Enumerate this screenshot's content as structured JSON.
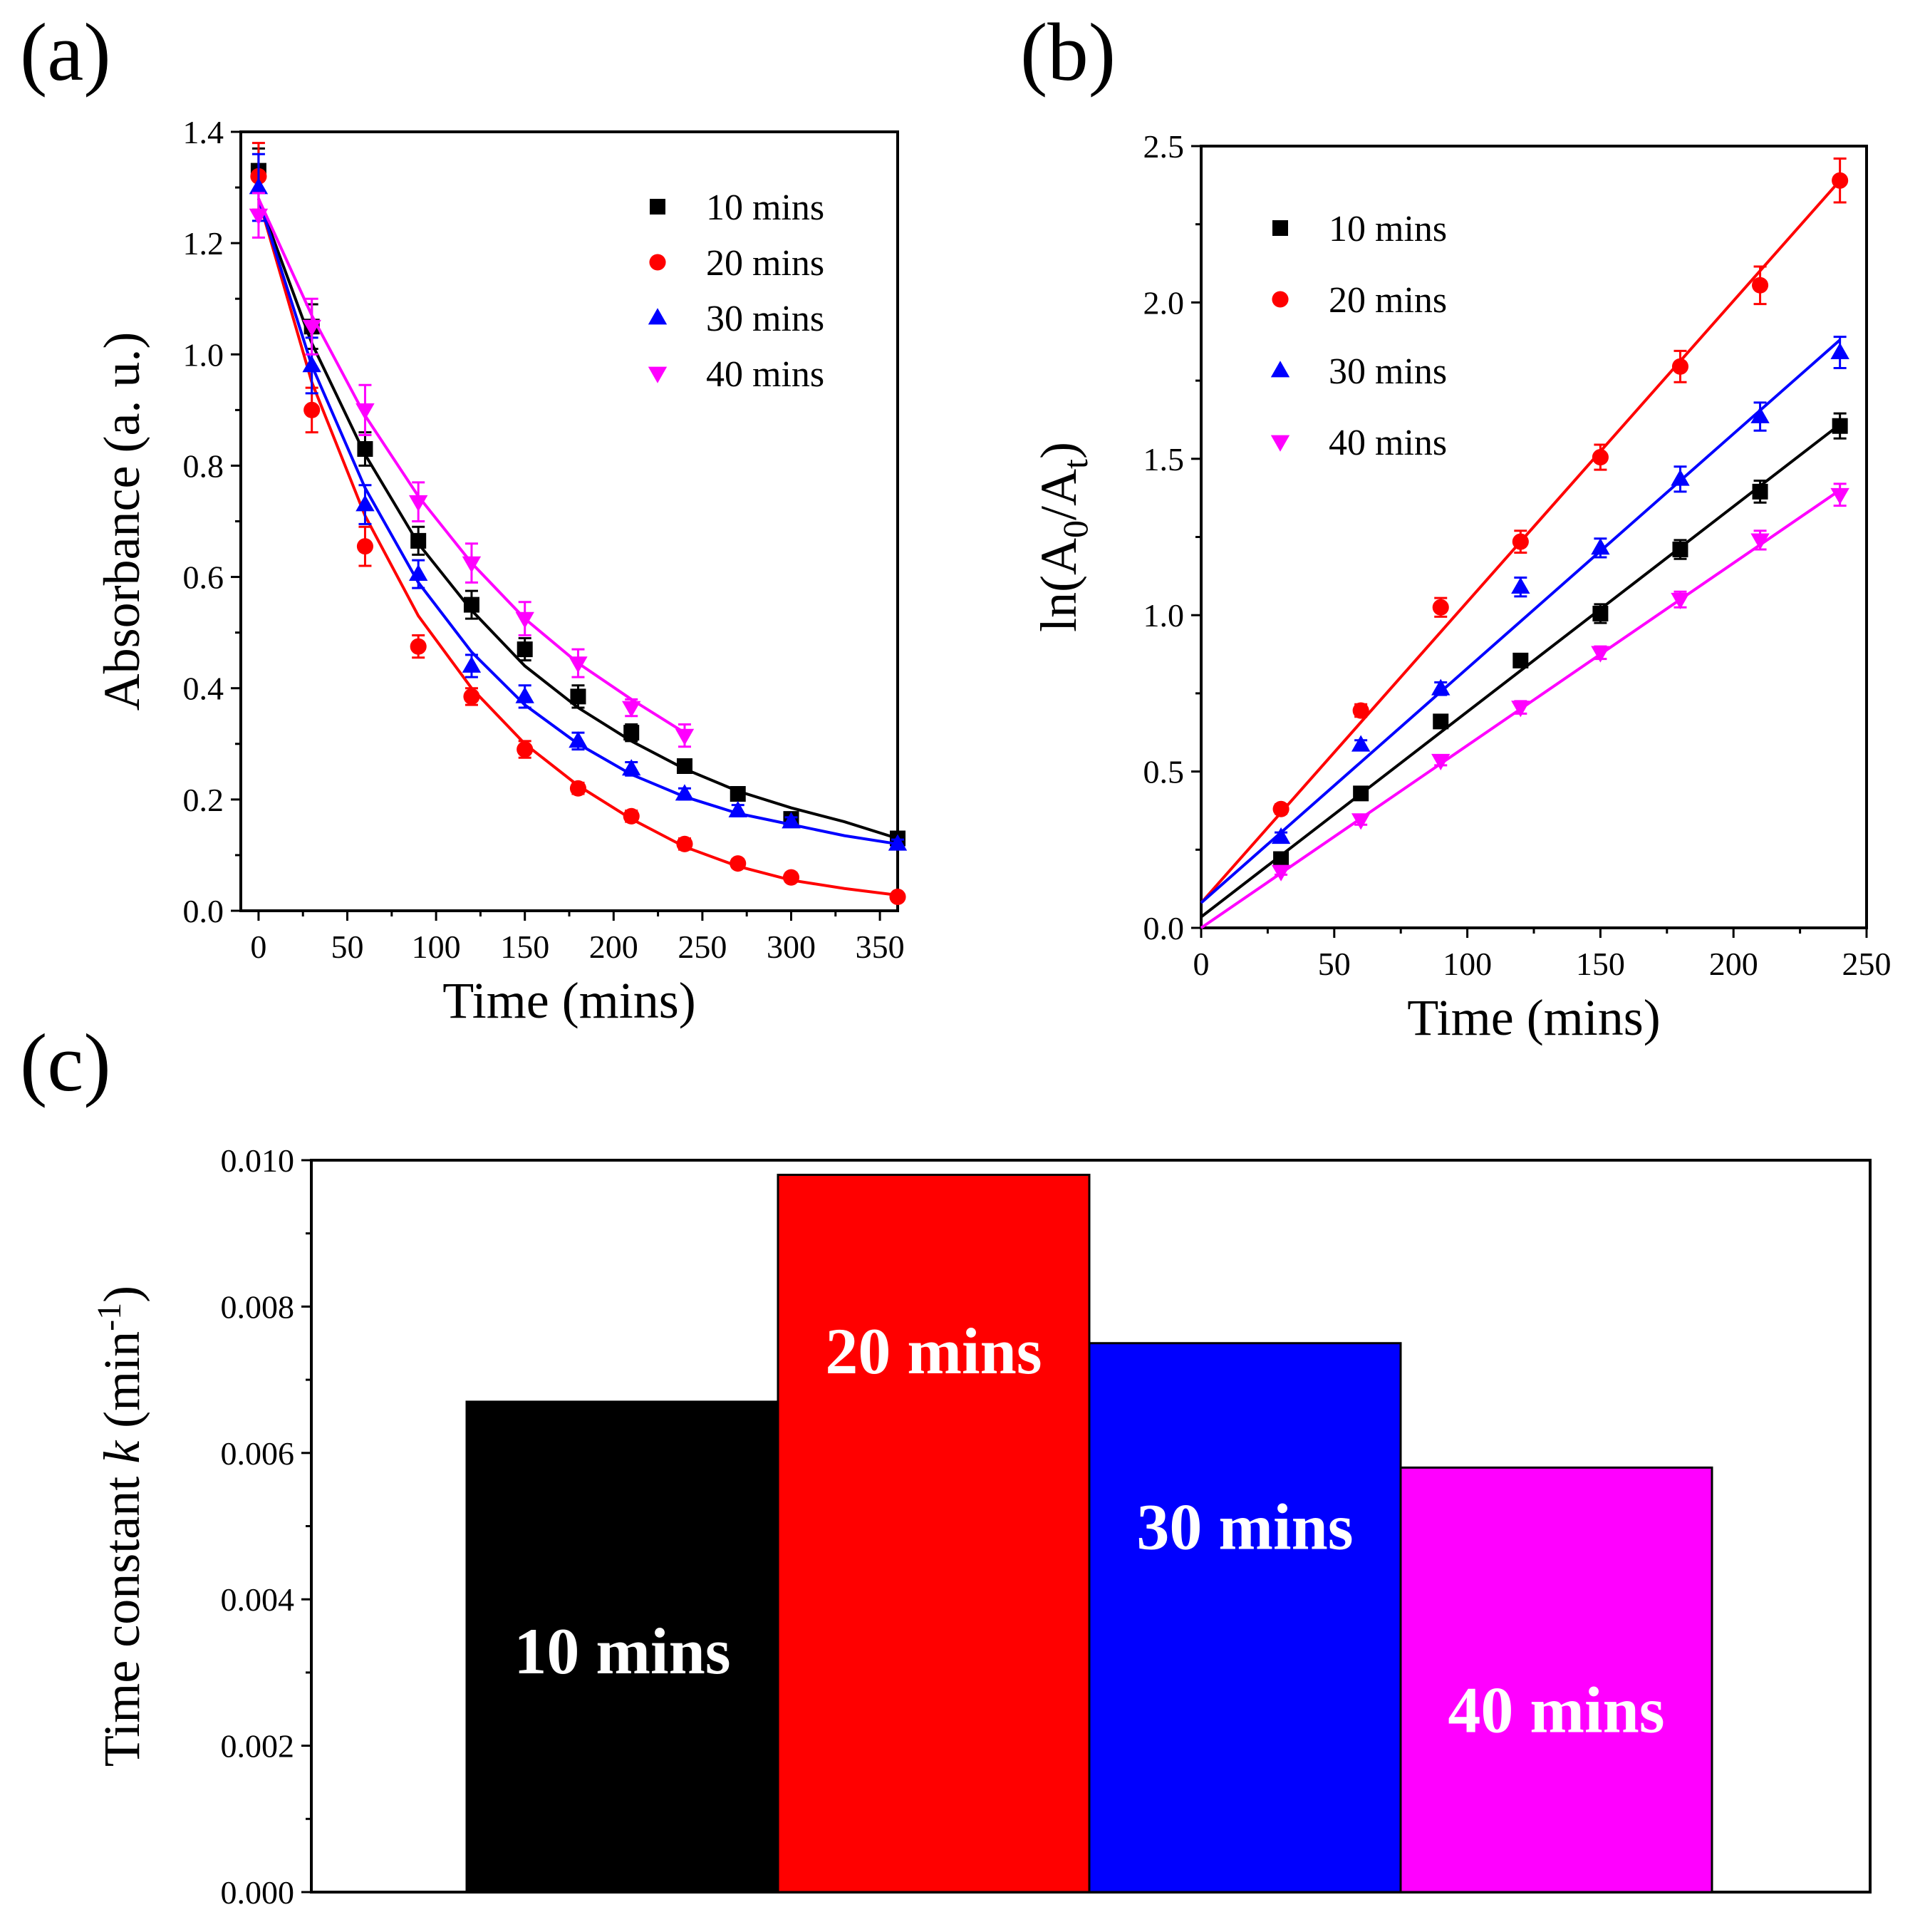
{
  "panels": {
    "a": "(a)",
    "b": "(b)",
    "c": "(c)"
  },
  "colors": {
    "10 mins": "#000000",
    "20 mins": "#ff0000",
    "30 mins": "#0000ff",
    "40 mins": "#ff00ff"
  },
  "chart_data": [
    {
      "id": "a",
      "type": "scatter",
      "xlabel": "Time (mins)",
      "ylabel": "Absorbance (a. u.)",
      "xlim": [
        -10,
        360
      ],
      "ylim": [
        0.0,
        1.4
      ],
      "xticks": [
        0,
        50,
        100,
        150,
        200,
        250,
        300,
        350
      ],
      "yticks": [
        0.0,
        0.2,
        0.4,
        0.6,
        0.8,
        1.0,
        1.2,
        1.4
      ],
      "xtick_labels": [
        "0",
        "50",
        "100",
        "150",
        "200",
        "250",
        "300",
        "350"
      ],
      "ytick_labels": [
        "0.0",
        "0.2",
        "0.4",
        "0.6",
        "0.8",
        "1.0",
        "1.2",
        "1.4"
      ],
      "legend_position": "top-right",
      "fit": "exponential decay",
      "series": [
        {
          "name": "10 mins",
          "marker": "square",
          "x": [
            0,
            30,
            60,
            90,
            120,
            150,
            180,
            210,
            240,
            270,
            300,
            360
          ],
          "y": [
            1.33,
            1.05,
            0.83,
            0.665,
            0.55,
            0.47,
            0.385,
            0.32,
            0.26,
            0.21,
            0.165,
            0.13
          ],
          "err": [
            0.04,
            0.04,
            0.03,
            0.025,
            0.025,
            0.02,
            0.02,
            0.015,
            0.01,
            0.01,
            0.01,
            0.01
          ],
          "fit_x": [
            0,
            30,
            60,
            90,
            120,
            150,
            180,
            210,
            240,
            270,
            300,
            330,
            360
          ],
          "fit_y": [
            1.28,
            1.02,
            0.82,
            0.66,
            0.54,
            0.44,
            0.365,
            0.305,
            0.255,
            0.215,
            0.185,
            0.16,
            0.13
          ]
        },
        {
          "name": "20 mins",
          "marker": "circle",
          "x": [
            0,
            30,
            60,
            90,
            120,
            150,
            180,
            210,
            240,
            270,
            300,
            360
          ],
          "y": [
            1.32,
            0.9,
            0.655,
            0.475,
            0.385,
            0.29,
            0.22,
            0.17,
            0.12,
            0.085,
            0.06,
            0.025
          ],
          "err": [
            0.06,
            0.04,
            0.035,
            0.02,
            0.015,
            0.015,
            0.01,
            0.01,
            0.01,
            0.008,
            0.008,
            0.006
          ],
          "fit_x": [
            0,
            30,
            60,
            90,
            120,
            150,
            180,
            210,
            240,
            270,
            300,
            330,
            360
          ],
          "fit_y": [
            1.28,
            0.95,
            0.71,
            0.53,
            0.4,
            0.3,
            0.225,
            0.165,
            0.115,
            0.08,
            0.055,
            0.04,
            0.028
          ]
        },
        {
          "name": "30 mins",
          "marker": "triangle-up",
          "x": [
            0,
            30,
            60,
            90,
            120,
            150,
            180,
            210,
            240,
            270,
            300,
            360
          ],
          "y": [
            1.3,
            0.98,
            0.73,
            0.605,
            0.44,
            0.385,
            0.305,
            0.255,
            0.21,
            0.18,
            0.16,
            0.12
          ],
          "err": [
            0.06,
            0.05,
            0.035,
            0.025,
            0.02,
            0.02,
            0.015,
            0.012,
            0.01,
            0.01,
            0.008,
            0.008
          ],
          "fit_x": [
            0,
            30,
            60,
            90,
            120,
            150,
            180,
            210,
            240,
            270,
            300,
            330,
            360
          ],
          "fit_y": [
            1.28,
            0.98,
            0.76,
            0.59,
            0.465,
            0.37,
            0.3,
            0.245,
            0.205,
            0.175,
            0.155,
            0.135,
            0.12
          ]
        },
        {
          "name": "40 mins",
          "marker": "triangle-down",
          "x": [
            0,
            30,
            60,
            90,
            120,
            150,
            180,
            210,
            240
          ],
          "y": [
            1.25,
            1.05,
            0.9,
            0.735,
            0.625,
            0.525,
            0.445,
            0.365,
            0.315
          ],
          "err": [
            0.04,
            0.05,
            0.045,
            0.035,
            0.035,
            0.03,
            0.025,
            0.015,
            0.02
          ],
          "fit_x": [
            0,
            30,
            60,
            90,
            120,
            150,
            180,
            210,
            240
          ],
          "fit_y": [
            1.28,
            1.07,
            0.89,
            0.745,
            0.625,
            0.525,
            0.445,
            0.38,
            0.32
          ]
        }
      ]
    },
    {
      "id": "b",
      "type": "scatter",
      "xlabel": "Time (mins)",
      "ylabel": "ln(A0/At)",
      "ylabel_parts": {
        "prefix": "ln(A",
        "sub0": "0",
        "mid": "/A",
        "subt": "t",
        "suffix": ")"
      },
      "xlim": [
        0,
        250
      ],
      "ylim": [
        0.0,
        2.5
      ],
      "xticks": [
        0,
        50,
        100,
        150,
        200,
        250
      ],
      "yticks": [
        0.0,
        0.5,
        1.0,
        1.5,
        2.0,
        2.5
      ],
      "xtick_labels": [
        "0",
        "50",
        "100",
        "150",
        "200",
        "250"
      ],
      "ytick_labels": [
        "0.0",
        "0.5",
        "1.0",
        "1.5",
        "2.0",
        "2.5"
      ],
      "legend_position": "top-left",
      "fit": "linear",
      "series": [
        {
          "name": "10 mins",
          "marker": "square",
          "x": [
            30,
            60,
            90,
            120,
            150,
            180,
            210,
            240
          ],
          "y": [
            0.22,
            0.43,
            0.66,
            0.855,
            1.005,
            1.21,
            1.395,
            1.605
          ],
          "err": [
            0.015,
            0.015,
            0.02,
            0.02,
            0.03,
            0.03,
            0.035,
            0.04
          ],
          "fit_x": [
            0,
            240
          ],
          "fit_y": [
            0.035,
            1.61
          ]
        },
        {
          "name": "20 mins",
          "marker": "circle",
          "x": [
            30,
            60,
            90,
            120,
            150,
            180,
            210,
            240
          ],
          "y": [
            0.38,
            0.695,
            1.025,
            1.235,
            1.505,
            1.795,
            2.055,
            2.39
          ],
          "err": [
            0.015,
            0.02,
            0.03,
            0.035,
            0.04,
            0.05,
            0.06,
            0.07
          ],
          "fit_x": [
            0,
            240
          ],
          "fit_y": [
            0.08,
            2.39
          ]
        },
        {
          "name": "30 mins",
          "marker": "triangle-up",
          "x": [
            30,
            60,
            90,
            120,
            150,
            180,
            210,
            240
          ],
          "y": [
            0.29,
            0.585,
            0.765,
            1.09,
            1.215,
            1.435,
            1.635,
            1.84
          ],
          "err": [
            0.015,
            0.015,
            0.02,
            0.03,
            0.03,
            0.04,
            0.045,
            0.05
          ],
          "fit_x": [
            0,
            240
          ],
          "fit_y": [
            0.08,
            1.88
          ]
        },
        {
          "name": "40 mins",
          "marker": "triangle-down",
          "x": [
            30,
            60,
            90,
            120,
            150,
            180,
            210,
            240
          ],
          "y": [
            0.18,
            0.345,
            0.535,
            0.705,
            0.88,
            1.05,
            1.24,
            1.385
          ],
          "err": [
            0.01,
            0.015,
            0.015,
            0.02,
            0.02,
            0.025,
            0.03,
            0.035
          ],
          "fit_x": [
            0,
            240
          ],
          "fit_y": [
            0.0,
            1.4
          ]
        }
      ]
    },
    {
      "id": "c",
      "type": "bar",
      "ylabel": "Time constant k (min-1)",
      "ylabel_parts": {
        "prefix": "Time constant ",
        "italic": "k",
        "mid": " (min",
        "sup": "-1",
        "suffix": ")"
      },
      "ylim": [
        0.0,
        0.01
      ],
      "yticks": [
        0.0,
        0.002,
        0.004,
        0.006,
        0.008,
        0.01
      ],
      "ytick_labels": [
        "0.000",
        "0.002",
        "0.004",
        "0.006",
        "0.008",
        "0.010"
      ],
      "categories": [
        "10 mins",
        "20 mins",
        "30 mins",
        "40 mins"
      ],
      "values": [
        0.0067,
        0.0098,
        0.0075,
        0.0058
      ],
      "bar_labels": [
        "10 mins",
        "20 mins",
        "30 mins",
        "40 mins"
      ],
      "bar_label_values": [
        0.0033,
        0.0074,
        0.005,
        0.0025
      ]
    }
  ]
}
